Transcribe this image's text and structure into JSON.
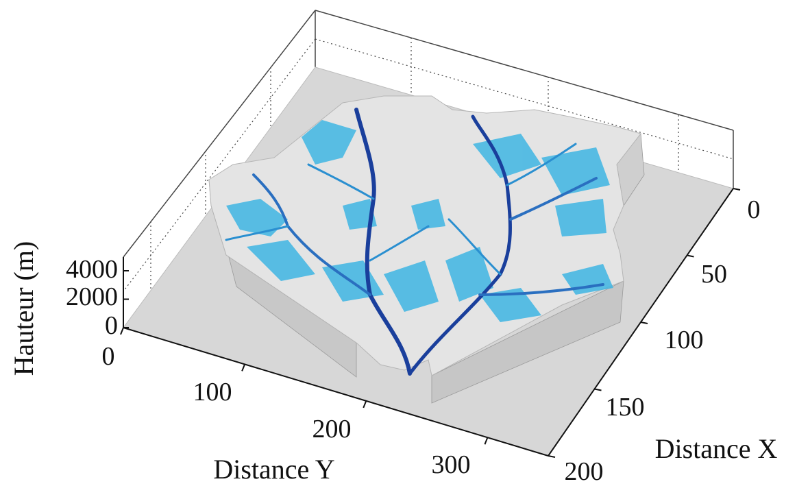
{
  "chart_data": {
    "type": "surface3d",
    "description_free": true,
    "z_axis": {
      "label": "Hauteur (m)",
      "ticks": [
        0,
        2000,
        4000
      ],
      "range": [
        0,
        4000
      ]
    },
    "y_axis": {
      "label": "Distance Y",
      "ticks": [
        0,
        100,
        200,
        300
      ],
      "range": [
        0,
        350
      ]
    },
    "x_axis": {
      "label": "Distance X",
      "ticks": [
        0,
        50,
        100,
        150,
        200
      ],
      "range": [
        0,
        200
      ]
    },
    "grid": true,
    "colors": {
      "terrain": "#dcdcdc",
      "terrain_side": "#bdbdbd",
      "stream_light": "#3fb6e3",
      "stream_mid": "#2a8fd0",
      "stream_dark": "#1a3f9c",
      "grid": "#555555",
      "axis": "#111111"
    }
  }
}
